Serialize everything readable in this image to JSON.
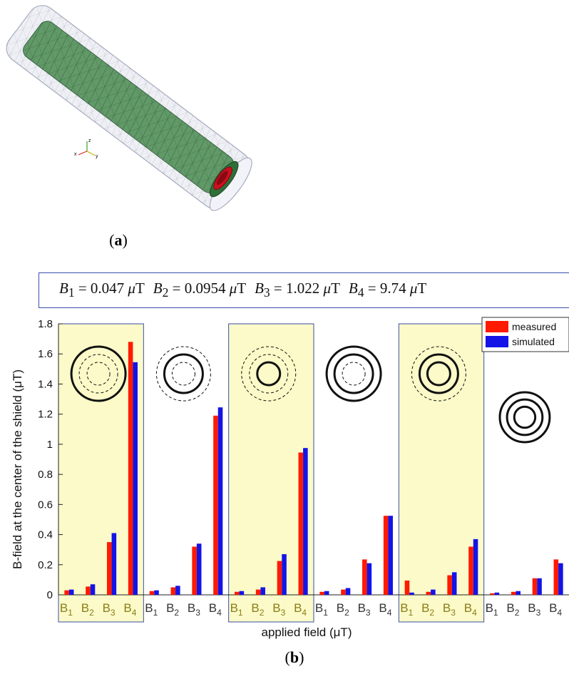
{
  "figure_a": {
    "panel_label": "a",
    "axis_triad": {
      "z": "z",
      "x": "x",
      "y": "y"
    },
    "colors": {
      "outer_shell": "#d8dce8",
      "middle_shell": "#2f7a3c",
      "inner_shell": "#cc1020"
    }
  },
  "formula": {
    "terms": [
      {
        "symbol": "B",
        "sub": "1",
        "value": "0.047",
        "unit_mu": "μ",
        "unit": "T"
      },
      {
        "symbol": "B",
        "sub": "2",
        "value": "0.0954",
        "unit_mu": "μ",
        "unit": "T"
      },
      {
        "symbol": "B",
        "sub": "3",
        "value": "1.022",
        "unit_mu": "μ",
        "unit": "T"
      },
      {
        "symbol": "B",
        "sub": "4",
        "value": "9.74",
        "unit_mu": "μ",
        "unit": "T"
      }
    ]
  },
  "figure_b": {
    "panel_label": "b"
  },
  "chart_data": {
    "type": "bar",
    "ylabel": "B-field at the center of the shield (μT)",
    "xlabel": "applied field (μT)",
    "ylim": [
      0,
      1.8
    ],
    "yticks": [
      "0",
      "0.2",
      "0.4",
      "0.6",
      "0.8",
      "1",
      "1.2",
      "1.4",
      "1.6",
      "1.8"
    ],
    "legend": {
      "placement": "top-right",
      "entries": [
        "measured",
        "simulated"
      ]
    },
    "series_colors": {
      "measured": "#ff1a00",
      "simulated": "#1414e6"
    },
    "highlight_color": "#fbfac8",
    "groups": [
      {
        "highlighted": true,
        "categories": [
          "B1",
          "B2",
          "B3",
          "B4"
        ],
        "measured": [
          0.03,
          0.055,
          0.35,
          1.68
        ],
        "simulated": [
          0.035,
          0.07,
          0.41,
          1.545
        ],
        "icon": [
          "solid-large",
          "dashed-mid",
          "dashed-small"
        ]
      },
      {
        "highlighted": false,
        "categories": [
          "B1",
          "B2",
          "B3",
          "B4"
        ],
        "measured": [
          0.025,
          0.05,
          0.32,
          1.19
        ],
        "simulated": [
          0.03,
          0.06,
          0.34,
          1.245
        ],
        "icon": [
          "dashed-large",
          "solid-mid",
          "dashed-small"
        ]
      },
      {
        "highlighted": true,
        "categories": [
          "B1",
          "B2",
          "B3",
          "B4"
        ],
        "measured": [
          0.02,
          0.035,
          0.225,
          0.945
        ],
        "simulated": [
          0.025,
          0.05,
          0.27,
          0.975
        ],
        "icon": [
          "dashed-large",
          "dashed-mid",
          "solid-small"
        ]
      },
      {
        "highlighted": false,
        "categories": [
          "B1",
          "B2",
          "B3",
          "B4"
        ],
        "measured": [
          0.02,
          0.035,
          0.235,
          0.525
        ],
        "simulated": [
          0.025,
          0.045,
          0.21,
          0.525
        ],
        "icon": [
          "solid-large",
          "solid-mid",
          "dashed-small"
        ]
      },
      {
        "highlighted": true,
        "categories": [
          "B1",
          "B2",
          "B3",
          "B4"
        ],
        "measured": [
          0.095,
          0.02,
          0.13,
          0.32
        ],
        "simulated": [
          0.015,
          0.035,
          0.15,
          0.37
        ],
        "icon": [
          "dashed-large",
          "solid-mid",
          "solid-small"
        ]
      },
      {
        "highlighted": false,
        "categories": [
          "B1",
          "B2",
          "B3",
          "B4"
        ],
        "measured": [
          0.01,
          0.02,
          0.11,
          0.235
        ],
        "simulated": [
          0.015,
          0.025,
          0.11,
          0.21
        ],
        "icon": [
          "solid-large",
          "solid-mid",
          "solid-small"
        ]
      }
    ]
  }
}
